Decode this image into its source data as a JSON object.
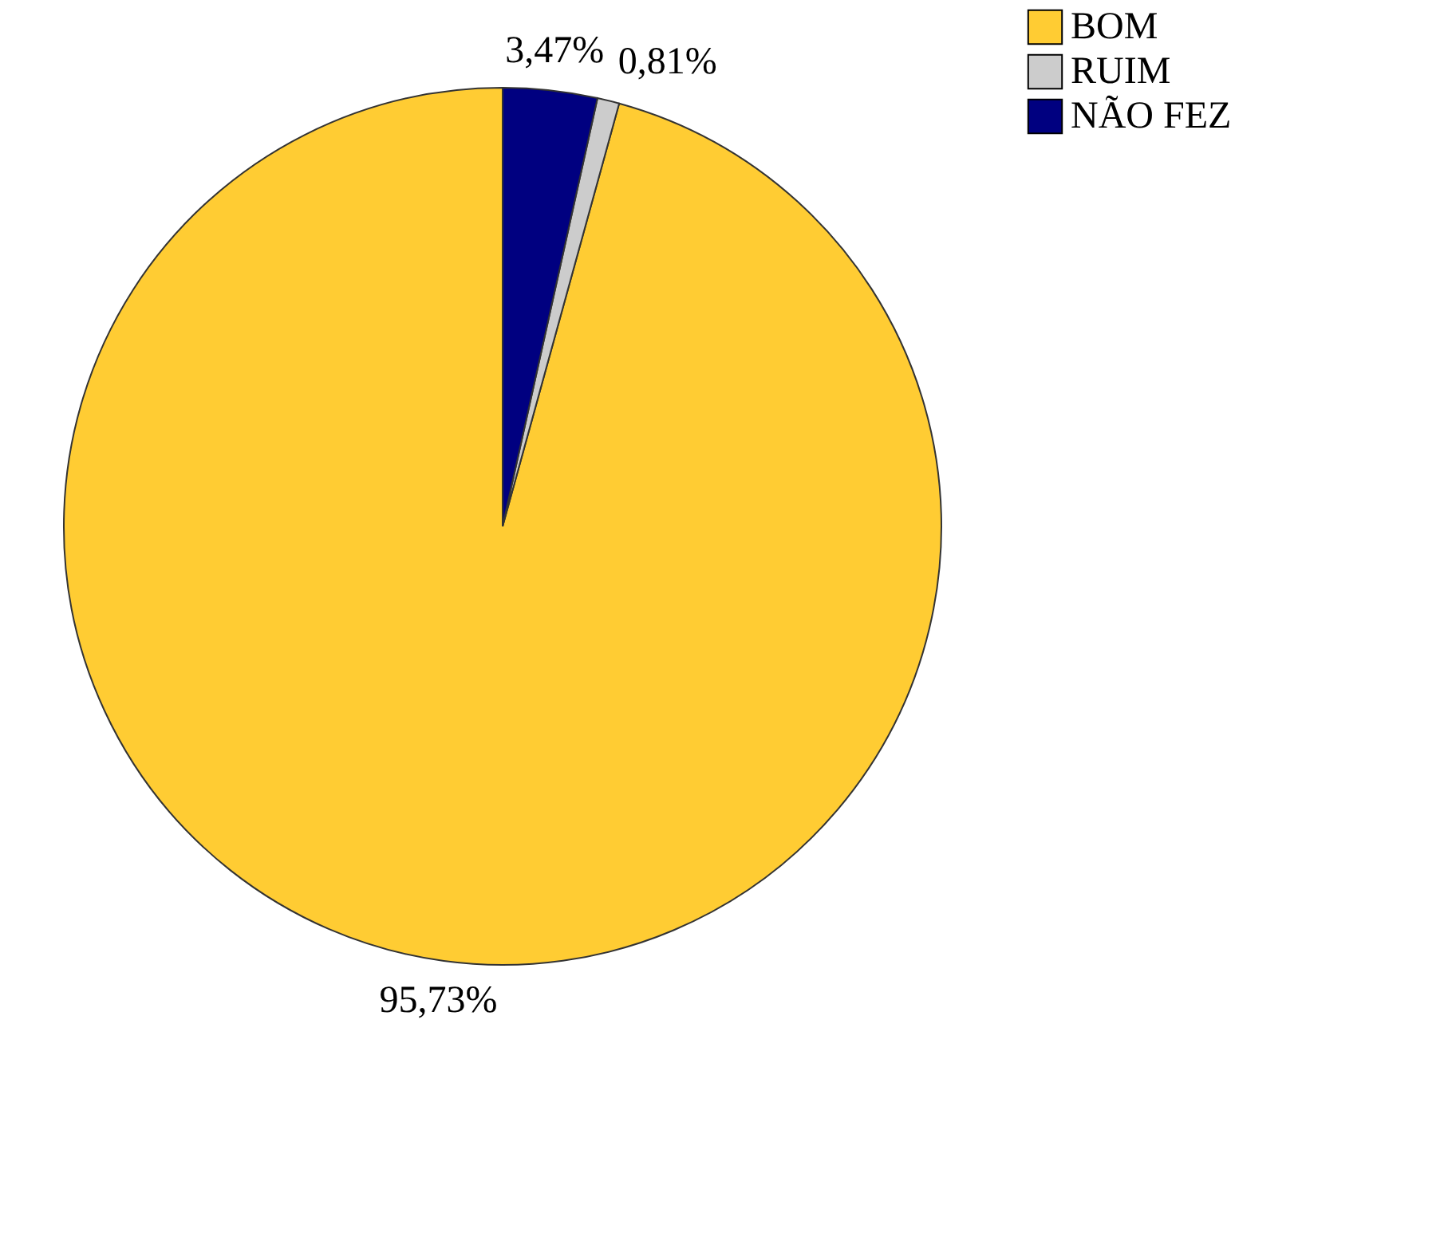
{
  "chart_data": {
    "type": "pie",
    "categories": [
      "BOM",
      "RUIM",
      "NÃO FEZ"
    ],
    "values": [
      95.73,
      0.81,
      3.47
    ],
    "colors": [
      "#ffcc33",
      "#cccccc",
      "#000080"
    ],
    "value_labels": [
      "95,73%",
      "0,81%",
      "3,47%"
    ],
    "legend": "right"
  }
}
